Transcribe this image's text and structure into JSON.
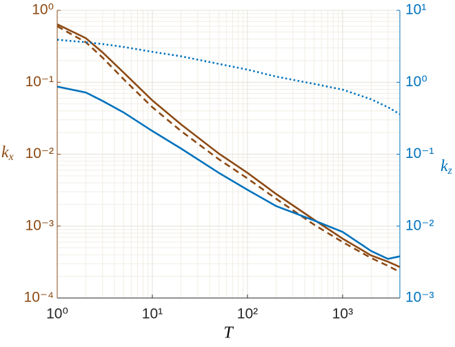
{
  "chart_data": {
    "type": "line",
    "log_x": true,
    "log_y": true,
    "grid": true,
    "x_label": "T",
    "y_label": {
      "base": "k",
      "sub": "x"
    },
    "y2_label": {
      "base": "k",
      "sub": "z"
    },
    "y_color": "#8c4a14",
    "y2_color": "#0072bd",
    "xlim": [
      1,
      4000
    ],
    "xticks": [
      {
        "value": 1,
        "label": "10⁰"
      },
      {
        "value": 10,
        "label": "10¹"
      },
      {
        "value": 100,
        "label": "10²"
      },
      {
        "value": 1000,
        "label": "10³"
      }
    ],
    "ylim": [
      0.0001,
      1
    ],
    "yticks": [
      {
        "value": 0.0001,
        "label": "10⁻⁴"
      },
      {
        "value": 0.001,
        "label": "10⁻³"
      },
      {
        "value": 0.01,
        "label": "10⁻²"
      },
      {
        "value": 0.1,
        "label": "10⁻¹"
      },
      {
        "value": 1,
        "label": "10⁰"
      }
    ],
    "y2lim": [
      0.001,
      10
    ],
    "y2ticks": [
      {
        "value": 0.001,
        "label": "10⁻³"
      },
      {
        "value": 0.01,
        "label": "10⁻²"
      },
      {
        "value": 0.1,
        "label": "10⁻¹"
      },
      {
        "value": 1,
        "label": "10⁰"
      },
      {
        "value": 10,
        "label": "10¹"
      }
    ],
    "x": [
      1,
      2,
      3,
      5,
      10,
      20,
      50,
      100,
      200,
      500,
      1000,
      2000,
      3000,
      4000
    ],
    "series": [
      {
        "color": "#8c4a14",
        "dash": "solid",
        "values": [
          0.64,
          0.41,
          0.26,
          0.136,
          0.056,
          0.026,
          0.0102,
          0.0055,
          0.0028,
          0.00123,
          0.00067,
          0.00039,
          0.00032,
          0.00027
        ]
      },
      {
        "color": "#8c4a14",
        "dash": "dashed",
        "values": [
          0.6,
          0.36,
          0.22,
          0.11,
          0.045,
          0.021,
          0.0085,
          0.0046,
          0.0024,
          0.00105,
          0.0006,
          0.00036,
          0.00028,
          0.00023
        ]
      },
      {
        "color": "#0072bd",
        "dash": "solid",
        "axis": "y2",
        "values": [
          0.87,
          0.72,
          0.55,
          0.38,
          0.21,
          0.12,
          0.055,
          0.032,
          0.019,
          0.012,
          0.0083,
          0.0045,
          0.0035,
          0.0038
        ]
      },
      {
        "color": "#0072bd",
        "dash": "dotted",
        "axis": "y2",
        "values": [
          3.9,
          3.6,
          3.4,
          3.1,
          2.65,
          2.3,
          1.8,
          1.5,
          1.2,
          0.95,
          0.79,
          0.58,
          0.45,
          0.36
        ]
      }
    ]
  }
}
